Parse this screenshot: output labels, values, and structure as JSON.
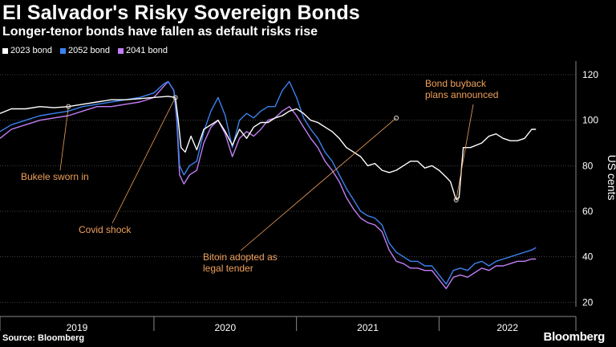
{
  "header": {
    "title": "El Salvador's Risky Sovereign Bonds",
    "subtitle": "Longer-tenor bonds have fallen as default risks rise"
  },
  "footer": {
    "source": "Source: Bloomberg",
    "brand": "Bloomberg"
  },
  "colors": {
    "background": "#000000",
    "bond_2023": "#ffffff",
    "bond_2052": "#3b82f0",
    "bond_2041": "#c17ef5",
    "annotation": "#f0a05a",
    "grid": "#444444"
  },
  "chart_data": {
    "type": "line",
    "title": "El Salvador's Risky Sovereign Bonds",
    "subtitle": "Longer-tenor bonds have fallen as default risks rise",
    "ylabel": "US cents",
    "ylim": [
      18,
      126
    ],
    "yticks": [
      20,
      40,
      60,
      80,
      100,
      120
    ],
    "xlim": [
      2018.92,
      2022.96
    ],
    "x_year_labels": [
      "2019",
      "2020",
      "2021",
      "2022"
    ],
    "grid": true,
    "legend_position": "top-left",
    "series": [
      {
        "name": "2023 bond",
        "color": "#ffffff",
        "points": [
          [
            2018.92,
            103
          ],
          [
            2019.0,
            105
          ],
          [
            2019.1,
            105
          ],
          [
            2019.2,
            106
          ],
          [
            2019.3,
            105.5
          ],
          [
            2019.4,
            106
          ],
          [
            2019.5,
            107
          ],
          [
            2019.6,
            108
          ],
          [
            2019.7,
            109
          ],
          [
            2019.8,
            109
          ],
          [
            2019.9,
            109.5
          ],
          [
            2020.0,
            110
          ],
          [
            2020.1,
            110.5
          ],
          [
            2020.15,
            110
          ],
          [
            2020.17,
            100
          ],
          [
            2020.19,
            88
          ],
          [
            2020.22,
            86
          ],
          [
            2020.26,
            93
          ],
          [
            2020.3,
            87
          ],
          [
            2020.35,
            96
          ],
          [
            2020.4,
            98
          ],
          [
            2020.45,
            100
          ],
          [
            2020.5,
            95
          ],
          [
            2020.55,
            89
          ],
          [
            2020.6,
            96
          ],
          [
            2020.65,
            92
          ],
          [
            2020.7,
            97
          ],
          [
            2020.75,
            99
          ],
          [
            2020.8,
            99
          ],
          [
            2020.85,
            101
          ],
          [
            2020.9,
            102
          ],
          [
            2020.95,
            104
          ],
          [
            2021.0,
            105
          ],
          [
            2021.05,
            103
          ],
          [
            2021.1,
            100
          ],
          [
            2021.15,
            99
          ],
          [
            2021.2,
            97
          ],
          [
            2021.25,
            95
          ],
          [
            2021.3,
            92
          ],
          [
            2021.35,
            88
          ],
          [
            2021.4,
            86
          ],
          [
            2021.45,
            84
          ],
          [
            2021.5,
            80
          ],
          [
            2021.55,
            81
          ],
          [
            2021.6,
            78
          ],
          [
            2021.65,
            77
          ],
          [
            2021.7,
            78
          ],
          [
            2021.75,
            80
          ],
          [
            2021.8,
            82
          ],
          [
            2021.85,
            82
          ],
          [
            2021.9,
            79
          ],
          [
            2021.95,
            80
          ],
          [
            2022.0,
            78
          ],
          [
            2022.05,
            75
          ],
          [
            2022.08,
            73
          ],
          [
            2022.12,
            65
          ],
          [
            2022.14,
            66
          ],
          [
            2022.17,
            88
          ],
          [
            2022.22,
            88
          ],
          [
            2022.3,
            90
          ],
          [
            2022.35,
            93
          ],
          [
            2022.4,
            94
          ],
          [
            2022.45,
            92
          ],
          [
            2022.5,
            91
          ],
          [
            2022.55,
            91
          ],
          [
            2022.6,
            92
          ],
          [
            2022.65,
            96
          ],
          [
            2022.68,
            96
          ]
        ]
      },
      {
        "name": "2052 bond",
        "color": "#3b82f0",
        "points": [
          [
            2018.92,
            95
          ],
          [
            2019.0,
            98
          ],
          [
            2019.1,
            100
          ],
          [
            2019.2,
            102
          ],
          [
            2019.3,
            103
          ],
          [
            2019.4,
            104
          ],
          [
            2019.5,
            106
          ],
          [
            2019.6,
            107
          ],
          [
            2019.7,
            108
          ],
          [
            2019.8,
            109
          ],
          [
            2019.9,
            110
          ],
          [
            2020.0,
            112
          ],
          [
            2020.07,
            116
          ],
          [
            2020.1,
            117
          ],
          [
            2020.14,
            113
          ],
          [
            2020.16,
            102
          ],
          [
            2020.18,
            80
          ],
          [
            2020.21,
            76
          ],
          [
            2020.25,
            80
          ],
          [
            2020.3,
            82
          ],
          [
            2020.35,
            95
          ],
          [
            2020.4,
            104
          ],
          [
            2020.45,
            110
          ],
          [
            2020.5,
            102
          ],
          [
            2020.55,
            88
          ],
          [
            2020.6,
            100
          ],
          [
            2020.65,
            103
          ],
          [
            2020.7,
            101
          ],
          [
            2020.75,
            104
          ],
          [
            2020.8,
            106
          ],
          [
            2020.85,
            106
          ],
          [
            2020.9,
            113
          ],
          [
            2020.95,
            117
          ],
          [
            2021.0,
            110
          ],
          [
            2021.05,
            101
          ],
          [
            2021.1,
            96
          ],
          [
            2021.15,
            92
          ],
          [
            2021.2,
            86
          ],
          [
            2021.25,
            82
          ],
          [
            2021.3,
            76
          ],
          [
            2021.35,
            70
          ],
          [
            2021.4,
            65
          ],
          [
            2021.45,
            60
          ],
          [
            2021.5,
            58
          ],
          [
            2021.55,
            57
          ],
          [
            2021.6,
            54
          ],
          [
            2021.65,
            46
          ],
          [
            2021.7,
            42
          ],
          [
            2021.75,
            40
          ],
          [
            2021.8,
            38
          ],
          [
            2021.85,
            38
          ],
          [
            2021.9,
            36
          ],
          [
            2021.95,
            36
          ],
          [
            2022.0,
            32
          ],
          [
            2022.05,
            28
          ],
          [
            2022.1,
            34
          ],
          [
            2022.15,
            35
          ],
          [
            2022.2,
            34
          ],
          [
            2022.25,
            37
          ],
          [
            2022.3,
            38
          ],
          [
            2022.35,
            36
          ],
          [
            2022.4,
            38
          ],
          [
            2022.45,
            39
          ],
          [
            2022.5,
            40
          ],
          [
            2022.55,
            41
          ],
          [
            2022.6,
            42
          ],
          [
            2022.65,
            43
          ],
          [
            2022.68,
            44
          ]
        ]
      },
      {
        "name": "2041 bond",
        "color": "#c17ef5",
        "points": [
          [
            2018.92,
            92
          ],
          [
            2019.0,
            96
          ],
          [
            2019.1,
            98
          ],
          [
            2019.2,
            100
          ],
          [
            2019.3,
            101
          ],
          [
            2019.4,
            102
          ],
          [
            2019.5,
            104
          ],
          [
            2019.6,
            106
          ],
          [
            2019.7,
            106
          ],
          [
            2019.8,
            107
          ],
          [
            2019.9,
            108
          ],
          [
            2020.0,
            110
          ],
          [
            2020.07,
            115
          ],
          [
            2020.1,
            117
          ],
          [
            2020.14,
            113
          ],
          [
            2020.16,
            100
          ],
          [
            2020.18,
            76
          ],
          [
            2020.21,
            72
          ],
          [
            2020.25,
            76
          ],
          [
            2020.3,
            78
          ],
          [
            2020.35,
            90
          ],
          [
            2020.4,
            97
          ],
          [
            2020.45,
            100
          ],
          [
            2020.5,
            94
          ],
          [
            2020.55,
            84
          ],
          [
            2020.6,
            92
          ],
          [
            2020.65,
            95
          ],
          [
            2020.7,
            93
          ],
          [
            2020.75,
            96
          ],
          [
            2020.8,
            100
          ],
          [
            2020.85,
            101
          ],
          [
            2020.9,
            104
          ],
          [
            2020.95,
            106
          ],
          [
            2021.0,
            102
          ],
          [
            2021.05,
            97
          ],
          [
            2021.1,
            92
          ],
          [
            2021.15,
            88
          ],
          [
            2021.2,
            82
          ],
          [
            2021.25,
            78
          ],
          [
            2021.3,
            73
          ],
          [
            2021.35,
            66
          ],
          [
            2021.4,
            61
          ],
          [
            2021.45,
            57
          ],
          [
            2021.5,
            55
          ],
          [
            2021.55,
            54
          ],
          [
            2021.6,
            51
          ],
          [
            2021.65,
            43
          ],
          [
            2021.7,
            38
          ],
          [
            2021.75,
            37
          ],
          [
            2021.8,
            35
          ],
          [
            2021.85,
            35
          ],
          [
            2021.9,
            34
          ],
          [
            2021.95,
            34
          ],
          [
            2022.0,
            30
          ],
          [
            2022.05,
            26
          ],
          [
            2022.1,
            31
          ],
          [
            2022.15,
            32
          ],
          [
            2022.2,
            31
          ],
          [
            2022.25,
            33
          ],
          [
            2022.3,
            35
          ],
          [
            2022.35,
            34
          ],
          [
            2022.4,
            36
          ],
          [
            2022.45,
            36
          ],
          [
            2022.5,
            37
          ],
          [
            2022.55,
            38
          ],
          [
            2022.6,
            38
          ],
          [
            2022.65,
            39
          ],
          [
            2022.68,
            39
          ]
        ]
      }
    ],
    "annotations": [
      {
        "text": [
          "Bukele sworn in"
        ],
        "x": 2019.4,
        "y": 106
      },
      {
        "text": [
          "Covid shock"
        ],
        "x": 2020.15,
        "y": 110
      },
      {
        "text": [
          "Bitoin adopted as",
          "legal tender"
        ],
        "x": 2021.7,
        "y": 101
      },
      {
        "text": [
          "Bond buyback",
          "plans announced"
        ],
        "x": 2022.12,
        "y": 65
      }
    ]
  }
}
